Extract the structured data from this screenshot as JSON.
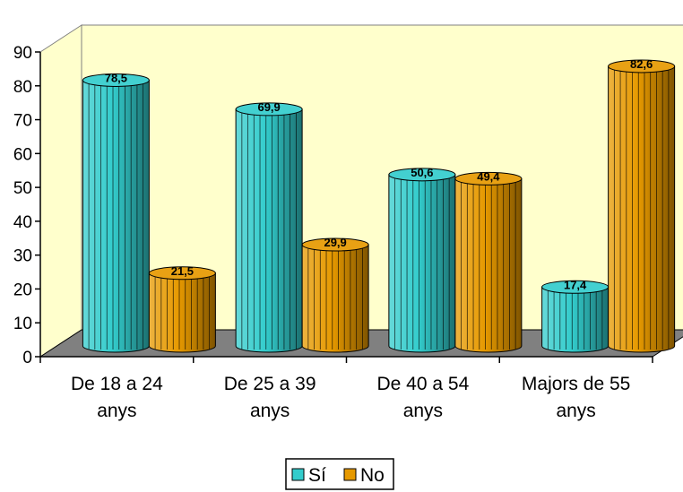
{
  "chart_data": {
    "type": "bar",
    "style": "3d-cylinder",
    "categories": [
      [
        "De 18 a 24",
        "anys"
      ],
      [
        "De 25 a 39",
        "anys"
      ],
      [
        "De 40 a 54",
        "anys"
      ],
      [
        "Majors de 55",
        "anys"
      ]
    ],
    "series": [
      {
        "name": "Sí",
        "values": [
          78.5,
          69.9,
          50.6,
          17.4
        ],
        "color": "#33CCCC"
      },
      {
        "name": "No",
        "values": [
          21.5,
          29.9,
          49.4,
          82.6
        ],
        "color": "#E69900"
      }
    ],
    "data_labels": {
      "Sí": [
        "78,5",
        "69,9",
        "50,6",
        "17,4"
      ],
      "No": [
        "21,5",
        "29,9",
        "49,4",
        "82,6"
      ]
    },
    "yticks": [
      "0",
      "10",
      "20",
      "30",
      "40",
      "50",
      "60",
      "70",
      "80",
      "90"
    ],
    "ylim": [
      0,
      90
    ],
    "grid": false,
    "legend_position": "bottom",
    "title": "",
    "xlabel": "",
    "ylabel": "",
    "colors": {
      "wall": "#FFFFCC",
      "floor": "#808080",
      "axis": "#000000"
    }
  }
}
